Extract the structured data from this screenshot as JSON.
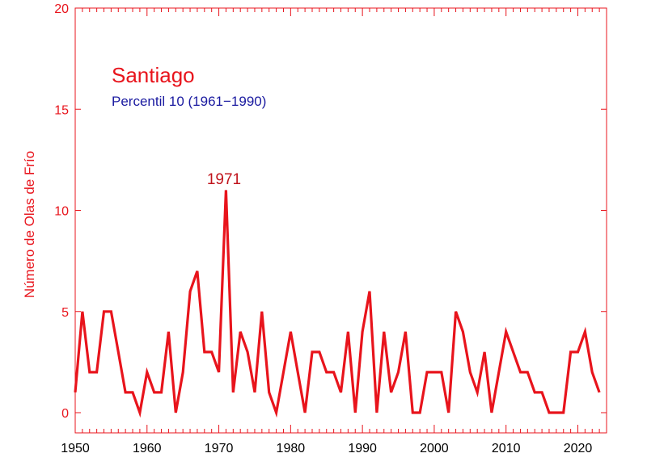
{
  "chart_data": {
    "type": "line",
    "title": "Santiago",
    "subtitle": "Percentil 10 (1961−1990)",
    "xlabel": "",
    "ylabel": "Número de Olas de Frío",
    "xlim": [
      1950,
      2024
    ],
    "ylim": [
      0,
      20
    ],
    "x_ticks": [
      1950,
      1960,
      1970,
      1980,
      1990,
      2000,
      2010,
      2020
    ],
    "y_ticks": [
      0,
      5,
      10,
      15,
      20
    ],
    "grid": false,
    "colors": {
      "series": "#e8141c",
      "title": "#e8141c",
      "subtitle": "#1a1aa0",
      "ylabel": "#e8141c",
      "axis": "#e8141c",
      "annotation": "#c0141c"
    },
    "annotations": [
      {
        "label": "1971",
        "x": 1971,
        "y": 11
      }
    ],
    "series": [
      {
        "x": [
          1950,
          1951,
          1952,
          1953,
          1954,
          1955,
          1956,
          1957,
          1958,
          1959,
          1960,
          1961,
          1962,
          1963,
          1964,
          1965,
          1966,
          1967,
          1968,
          1969,
          1970,
          1971,
          1972,
          1973,
          1974,
          1975,
          1976,
          1977,
          1978,
          1979,
          1980,
          1981,
          1982,
          1983,
          1984,
          1985,
          1986,
          1987,
          1988,
          1989,
          1990,
          1991,
          1992,
          1993,
          1994,
          1995,
          1996,
          1997,
          1998,
          1999,
          2000,
          2001,
          2002,
          2003,
          2004,
          2005,
          2006,
          2007,
          2008,
          2009,
          2010,
          2011,
          2012,
          2013,
          2014,
          2015,
          2016,
          2017,
          2018,
          2019,
          2020,
          2021,
          2022,
          2023
        ],
        "values": [
          1,
          5,
          2,
          2,
          5,
          5,
          3,
          1,
          1,
          0,
          2,
          1,
          1,
          4,
          0,
          2,
          6,
          7,
          3,
          3,
          2,
          11,
          1,
          4,
          3,
          1,
          5,
          1,
          0,
          2,
          4,
          2,
          0,
          3,
          3,
          2,
          2,
          1,
          4,
          0,
          4,
          6,
          0,
          4,
          1,
          2,
          4,
          0,
          0,
          2,
          2,
          2,
          0,
          5,
          4,
          2,
          1,
          3,
          0,
          2,
          4,
          3,
          2,
          2,
          1,
          1,
          0,
          0,
          0,
          3,
          3,
          4,
          2,
          1
        ]
      }
    ]
  }
}
